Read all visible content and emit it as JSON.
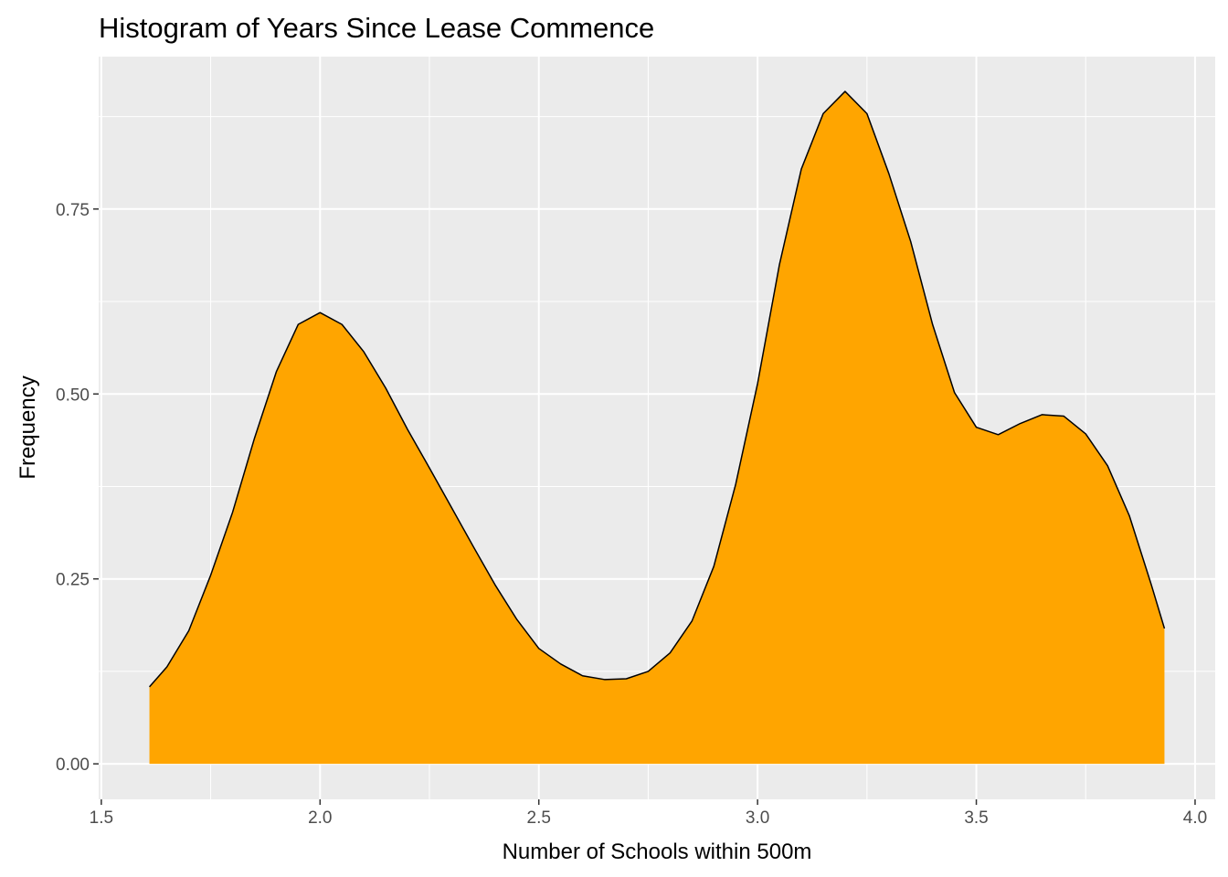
{
  "chart_data": {
    "type": "area",
    "title": "Histogram of Years Since Lease Commence",
    "x_label": "Number of Schools within 500m",
    "y_label": "Frequency",
    "x": [
      1.61,
      1.65,
      1.7,
      1.75,
      1.8,
      1.85,
      1.9,
      1.95,
      2.0,
      2.05,
      2.1,
      2.15,
      2.2,
      2.25,
      2.3,
      2.35,
      2.4,
      2.45,
      2.5,
      2.55,
      2.6,
      2.65,
      2.7,
      2.75,
      2.8,
      2.85,
      2.9,
      2.95,
      3.0,
      3.05,
      3.1,
      3.15,
      3.2,
      3.25,
      3.3,
      3.35,
      3.4,
      3.45,
      3.5,
      3.55,
      3.6,
      3.65,
      3.7,
      3.75,
      3.8,
      3.85,
      3.9,
      3.93
    ],
    "values": [
      0.104,
      0.131,
      0.18,
      0.255,
      0.34,
      0.44,
      0.53,
      0.594,
      0.61,
      0.594,
      0.557,
      0.508,
      0.452,
      0.4,
      0.347,
      0.294,
      0.242,
      0.195,
      0.156,
      0.135,
      0.119,
      0.114,
      0.115,
      0.125,
      0.15,
      0.193,
      0.267,
      0.378,
      0.514,
      0.675,
      0.804,
      0.879,
      0.909,
      0.879,
      0.798,
      0.706,
      0.594,
      0.502,
      0.455,
      0.445,
      0.46,
      0.472,
      0.47,
      0.446,
      0.403,
      0.335,
      0.242,
      0.183
    ],
    "color": "#ffa500",
    "line_color": "#000000",
    "xlim": [
      1.494,
      4.046
    ],
    "ylim": [
      -0.048,
      0.956
    ],
    "xticks": [
      1.5,
      {
        "value": 2,
        "label": "2.0"
      },
      2.5,
      {
        "value": 3,
        "label": "3.0"
      },
      3.5,
      {
        "value": 4,
        "label": "4.0"
      }
    ],
    "yticks": [
      {
        "value": 0,
        "label": "0.00"
      },
      {
        "value": 0.25,
        "label": "0.25"
      },
      {
        "value": 0.5,
        "label": "0.50"
      },
      {
        "value": 0.75,
        "label": "0.75"
      }
    ],
    "x_minor_ticks": [
      1.75,
      2.25,
      2.75,
      3.25,
      3.75
    ],
    "y_minor_ticks": [
      0.125,
      0.375,
      0.625,
      0.875
    ],
    "grid": true
  }
}
